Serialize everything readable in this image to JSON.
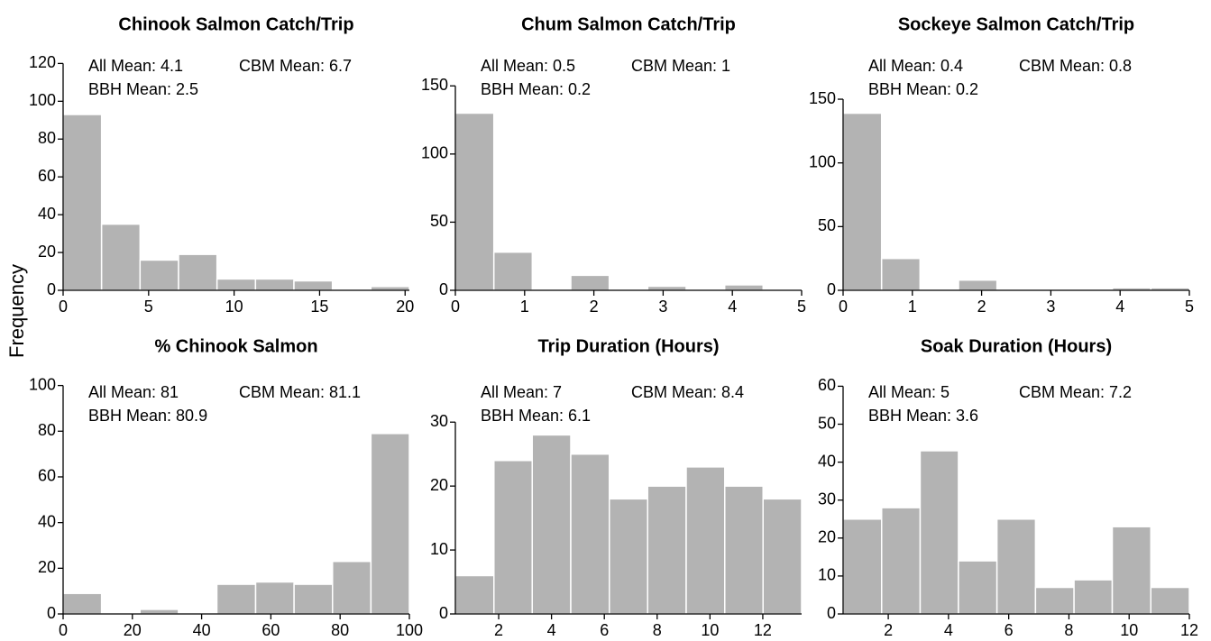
{
  "ylabel": "Frequency",
  "chart_data": [
    {
      "type": "histogram",
      "title": "Chinook Salmon Catch/Trip",
      "annotations": [
        "All Mean: 4.1",
        "CBM Mean: 6.7",
        "BBH Mean: 2.5"
      ],
      "bins": [
        0,
        2.25,
        4.5,
        6.75,
        9,
        11.25,
        13.5,
        15.75,
        18,
        20.25
      ],
      "values": [
        93,
        35,
        16,
        19,
        6,
        6,
        5,
        0,
        2
      ],
      "color": "#b3b3b3",
      "xlim": [
        0,
        20.25
      ],
      "xticks": [
        0,
        5,
        10,
        15,
        20
      ],
      "ylim": [
        0,
        124
      ],
      "yticks": [
        0,
        20,
        40,
        60,
        80,
        100,
        120
      ]
    },
    {
      "type": "histogram",
      "title": "Chum Salmon Catch/Trip",
      "annotations": [
        "All Mean: 0.5",
        "CBM Mean: 1",
        "BBH Mean: 0.2"
      ],
      "bins": [
        0,
        0.556,
        1.111,
        1.667,
        2.222,
        2.778,
        3.333,
        3.889,
        4.444,
        5
      ],
      "values": [
        130,
        28,
        0,
        11,
        0,
        3,
        0,
        4,
        1
      ],
      "color": "#b3b3b3",
      "xlim": [
        0,
        5
      ],
      "xticks": [
        0,
        1,
        2,
        3,
        4,
        5
      ],
      "ylim": [
        0,
        172
      ],
      "yticks": [
        0,
        50,
        100,
        150
      ]
    },
    {
      "type": "histogram",
      "title": "Sockeye Salmon Catch/Trip",
      "annotations": [
        "All Mean: 0.4",
        "CBM Mean: 0.8",
        "BBH Mean: 0.2"
      ],
      "bins": [
        0,
        0.556,
        1.111,
        1.667,
        2.222,
        2.778,
        3.333,
        3.889,
        4.444,
        5
      ],
      "values": [
        139,
        25,
        0,
        8,
        0,
        1,
        0,
        2,
        2
      ],
      "color": "#b3b3b3",
      "xlim": [
        0,
        5
      ],
      "xticks": [
        0,
        1,
        2,
        3,
        4,
        5
      ],
      "ylim": [
        0,
        184
      ],
      "yticks": [
        0,
        50,
        100,
        150
      ]
    },
    {
      "type": "histogram",
      "title": "% Chinook Salmon",
      "annotations": [
        "All Mean: 81",
        "CBM Mean: 81.1",
        "BBH Mean: 80.9"
      ],
      "bins": [
        0,
        11.1,
        22.2,
        33.3,
        44.4,
        55.6,
        66.7,
        77.8,
        88.9,
        100
      ],
      "values": [
        9,
        0,
        2,
        0,
        13,
        14,
        13,
        23,
        79
      ],
      "color": "#b3b3b3",
      "xlim": [
        0,
        100
      ],
      "xticks": [
        0,
        20,
        40,
        60,
        80,
        100
      ],
      "ylim": [
        0,
        103
      ],
      "yticks": [
        0,
        20,
        40,
        60,
        80,
        100
      ]
    },
    {
      "type": "histogram",
      "title": "Trip Duration (Hours)",
      "annotations": [
        "All Mean: 7",
        "CBM Mean: 8.4",
        "BBH Mean: 6.1"
      ],
      "bins": [
        0.36,
        1.82,
        3.27,
        4.73,
        6.19,
        7.64,
        9.1,
        10.56,
        12.01,
        13.47
      ],
      "values": [
        6,
        24,
        28,
        25,
        18,
        20,
        23,
        20,
        18
      ],
      "color": "#b3b3b3",
      "xlim": [
        0.36,
        13.47
      ],
      "xticks": [
        2,
        4,
        6,
        8,
        10,
        12
      ],
      "ylim": [
        0,
        36.8
      ],
      "yticks": [
        0,
        10,
        20,
        30
      ]
    },
    {
      "type": "histogram",
      "title": "Soak Duration (Hours)",
      "annotations": [
        "All Mean: 5",
        "CBM Mean: 7.2",
        "BBH Mean: 3.6"
      ],
      "bins": [
        0.5,
        1.78,
        3.06,
        4.33,
        5.61,
        6.89,
        8.17,
        9.44,
        10.72,
        12
      ],
      "values": [
        25,
        28,
        43,
        14,
        25,
        7,
        9,
        23,
        7
      ],
      "color": "#b3b3b3",
      "xlim": [
        0.5,
        12
      ],
      "xticks": [
        2,
        4,
        6,
        8,
        10,
        12
      ],
      "ylim": [
        0,
        62
      ],
      "yticks": [
        0,
        10,
        20,
        30,
        40,
        50,
        60
      ]
    }
  ]
}
